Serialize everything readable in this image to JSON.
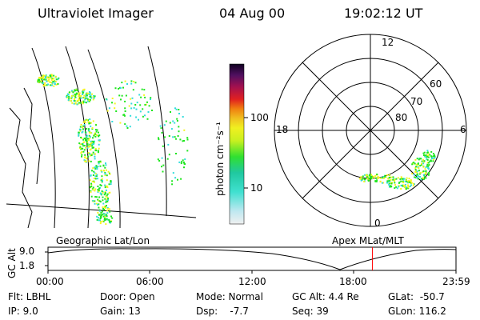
{
  "header": {
    "title": "Ultraviolet Imager",
    "date": "04 Aug 00",
    "time": "19:02:12 UT"
  },
  "colorbar": {
    "label": "photon cm⁻²s⁻¹",
    "ticks": [
      "100",
      "10"
    ]
  },
  "polar": {
    "lat_labels": [
      "80",
      "70",
      "60"
    ],
    "mlt_labels": {
      "top": "12",
      "left": "18",
      "right": "6",
      "bottom": "0"
    }
  },
  "timeline": {
    "left_label": "Geographic Lat/Lon",
    "right_label": "Apex MLat/MLT",
    "axis_label": "GC Alt",
    "y_ticks": [
      "9.0",
      "1.8"
    ],
    "x_ticks": [
      "00:00",
      "06:00",
      "12:00",
      "18:00",
      "23:59"
    ],
    "current_time_fraction": 0.795
  },
  "info": {
    "flt": "Flt: LBHL",
    "ip": "IP:  9.0",
    "door": "Door: Open",
    "gain": "Gain: 13",
    "mode": "Mode: Normal",
    "dsp": "Dsp:    -7.7",
    "gcalt": "GC Alt: 4.4 Re",
    "seq": "Seq: 39",
    "glat": "GLat:  -50.7",
    "glon": "GLon: 116.2"
  },
  "colors": {
    "timeline_marker": "#ff0000",
    "aurora_green": "#1ee61e",
    "aurora_yellow": "#f5f51e",
    "aurora_cyan": "#32dcdc"
  }
}
